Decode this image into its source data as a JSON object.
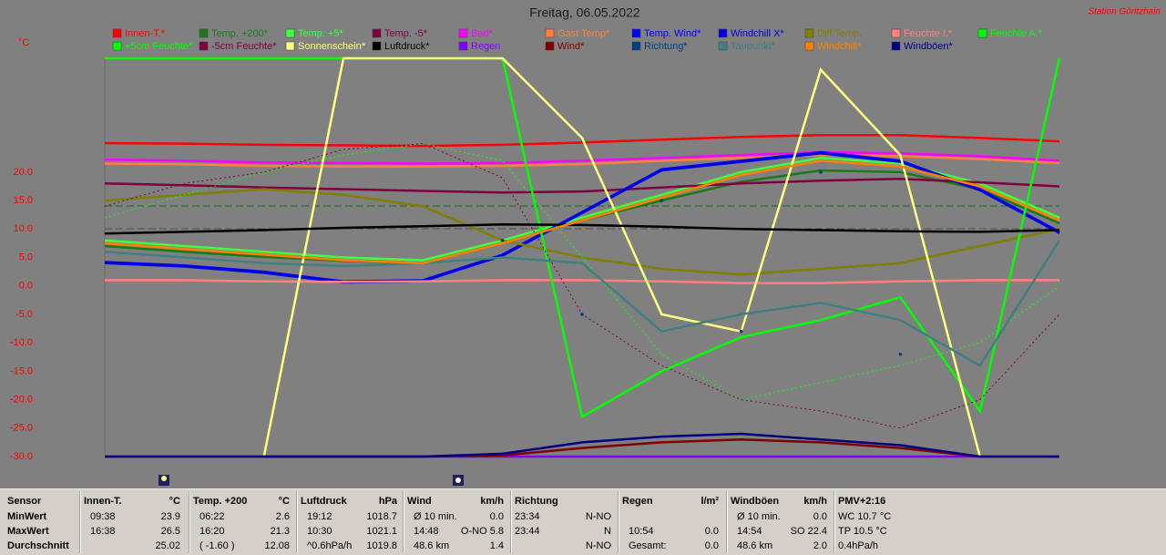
{
  "chart_data": {
    "type": "line",
    "title": "Freitag, 06.05.2022",
    "station": "Station Göritzhain",
    "y_label": "°C",
    "categories": [
      null,
      null,
      null,
      null,
      null,
      null,
      null,
      null,
      null,
      null,
      null,
      null,
      null
    ],
    "ylim": [
      -30,
      40
    ],
    "yticks": [
      {
        "value": 20,
        "label": "20.0"
      },
      {
        "value": 15,
        "label": "15.0"
      },
      {
        "value": 10,
        "label": "10.0"
      },
      {
        "value": 5,
        "label": "5.0"
      },
      {
        "value": 0,
        "label": "0.0"
      },
      {
        "value": -5,
        "label": "-5.0"
      },
      {
        "value": -10,
        "label": "-10.0"
      },
      {
        "value": -15,
        "label": "-15.0"
      },
      {
        "value": -20,
        "label": "-20.0"
      },
      {
        "value": -25,
        "label": "-25.0"
      },
      {
        "value": -30,
        "label": "-30.0"
      }
    ],
    "grid": false,
    "series": [
      {
        "name": "Innen-T.*",
        "color": "#ff0000",
        "values": [
          25.1,
          25,
          24.8,
          24.7,
          24.6,
          24.8,
          25.2,
          25.7,
          26.2,
          26.5,
          26.5,
          26,
          25.4
        ]
      },
      {
        "name": "Temp. +200*",
        "color": "#1a7a1a",
        "values": [
          7,
          6,
          5.1,
          4.4,
          4,
          7.5,
          11.5,
          15,
          18.3,
          20.3,
          20,
          17,
          11
        ]
      },
      {
        "name": "Temp. +5*",
        "color": "#40ff40",
        "values": [
          8,
          7,
          6,
          5,
          4.5,
          8,
          12,
          16,
          20,
          22.5,
          21.5,
          18,
          12
        ]
      },
      {
        "name": "Temp. -5*",
        "color": "#800040",
        "values": [
          18,
          17.7,
          17.3,
          17,
          16.7,
          16.4,
          16.6,
          17.3,
          18,
          18.5,
          18.8,
          18.2,
          17.5
        ]
      },
      {
        "name": "Bad*",
        "color": "#ff00ff",
        "values": [
          22.2,
          22,
          21.7,
          21.6,
          21.5,
          21.6,
          22,
          22.5,
          23,
          23.5,
          23.3,
          22.8,
          22
        ]
      },
      {
        "name": "Gast Temp*",
        "color": "#ff8040",
        "values": [
          21.5,
          21.4,
          21.1,
          21,
          21,
          21.1,
          21.4,
          22,
          22.5,
          23,
          22.8,
          22.3,
          21.6
        ]
      },
      {
        "name": "Temp. Wind*",
        "color": "#0000ff",
        "values": [
          4.2,
          3.6,
          2.5,
          0.8,
          1,
          5.5,
          13,
          20.5,
          22,
          23.5,
          22,
          17,
          9.5
        ]
      },
      {
        "name": "Windchill X*",
        "color": "#0000e0",
        "values": [
          4,
          3.4,
          2.3,
          0.6,
          0.8,
          5.3,
          12.8,
          20.3,
          21.8,
          23.3,
          21.8,
          16.8,
          9.3
        ]
      },
      {
        "name": "Diff Temp.",
        "color": "#808000",
        "values": [
          15,
          16,
          17,
          16,
          14,
          8,
          5,
          3,
          2,
          3,
          4,
          7,
          10
        ]
      },
      {
        "name": "Feuchte I.*",
        "color": "#ff8080",
        "values": [
          1,
          1,
          0.8,
          0.7,
          0.8,
          1,
          1,
          0.8,
          0.5,
          0.5,
          0.8,
          1,
          1
        ]
      },
      {
        "name": "Feuchte A.*",
        "color": "#00ff00",
        "values": [
          40,
          40,
          40,
          40,
          40,
          40,
          -23,
          -15,
          -9,
          -6,
          -2,
          -22,
          40
        ]
      },
      {
        "name": "+5cm Feuchte*",
        "color": "#00ff00",
        "style": "dotted",
        "values": [
          12,
          16,
          20,
          23,
          25,
          22,
          5,
          -12,
          -20,
          -17,
          -14,
          -10,
          0
        ]
      },
      {
        "name": "-5cm Feuchte*",
        "color": "#800040",
        "style": "dotted",
        "values": [
          14,
          18,
          20,
          24,
          25,
          19,
          -5,
          -14,
          -20,
          -22,
          -25,
          -20,
          -5
        ]
      },
      {
        "name": "Sonnenschein*",
        "color": "#ffff80",
        "values": [
          -30,
          -30,
          -30,
          40,
          40,
          40,
          26,
          -5,
          -8,
          38,
          23,
          -30,
          -30
        ]
      },
      {
        "name": "Luftdruck*",
        "color": "#000000",
        "values": [
          9.2,
          9.5,
          9.8,
          10.2,
          10.5,
          10.8,
          10.7,
          10.4,
          10,
          9.8,
          9.6,
          9.5,
          9.8
        ]
      },
      {
        "name": "Regen",
        "color": "#8000ff",
        "values": [
          -30,
          -30,
          -30,
          -30,
          -30,
          -30,
          -30,
          -30,
          -30,
          -30,
          -30,
          -30,
          -30
        ]
      },
      {
        "name": "Wind*",
        "color": "#800000",
        "values": [
          -30,
          -30,
          -30,
          -30,
          -30,
          -29.8,
          -28.5,
          -27.5,
          -27,
          -27.5,
          -28.5,
          -30,
          -30
        ]
      },
      {
        "name": "Richtung*",
        "color": "#004080",
        "style": "dots",
        "values": [
          null,
          null,
          null,
          null,
          null,
          8,
          -5,
          15,
          -8,
          20,
          -12,
          null,
          null
        ]
      },
      {
        "name": "Taupunkt*",
        "color": "#408080",
        "values": [
          6,
          5,
          4,
          3.5,
          4,
          5,
          4,
          -8,
          -5,
          -3,
          -6,
          -14,
          8
        ]
      },
      {
        "name": "Windchill*",
        "color": "#ff8000",
        "values": [
          7.5,
          6.5,
          5.5,
          4.5,
          4,
          7.5,
          11.5,
          15.5,
          19.5,
          22,
          21,
          17.5,
          11.5
        ]
      },
      {
        "name": "Windböen*",
        "color": "#000080",
        "values": [
          -30,
          -30,
          -30,
          -30,
          -30,
          -29.5,
          -27.5,
          -26.5,
          -26,
          -27,
          -28,
          -30,
          -30
        ]
      }
    ]
  },
  "table": {
    "row_header": "Sensor",
    "row_labels": [
      "MinWert",
      "MaxWert",
      "Durchschnitt"
    ],
    "groups": [
      {
        "name": "Innen-T.",
        "unit": "°C",
        "rows": [
          [
            "09:38",
            "23.9"
          ],
          [
            "16:38",
            "26.5"
          ],
          [
            null,
            "25.02"
          ]
        ]
      },
      {
        "name": "Temp. +200",
        "unit": "°C",
        "rows": [
          [
            "06:22",
            "2.6"
          ],
          [
            "16:20",
            "21.3"
          ],
          [
            "( -1.60 )",
            "12.08"
          ]
        ]
      },
      {
        "name": "Luftdruck",
        "unit": "hPa",
        "rows": [
          [
            "19:12",
            "1018.7"
          ],
          [
            "10:30",
            "1021.1"
          ],
          [
            "^0.6hPa/h",
            "1019.8"
          ]
        ]
      },
      {
        "name": "Wind",
        "unit": "km/h",
        "rows": [
          [
            "Ø 10 min.",
            "0.0"
          ],
          [
            "14:48",
            "O-NO 5.8"
          ],
          [
            "48.6 km",
            "1.4"
          ]
        ]
      },
      {
        "name": "Richtung",
        "unit": null,
        "rows": [
          [
            "23:34",
            "N-NO"
          ],
          [
            "23:44",
            "N"
          ],
          [
            null,
            "N-NO"
          ]
        ]
      },
      {
        "name": "Regen",
        "unit": "l/m²",
        "rows": [
          [
            null,
            null
          ],
          [
            "10:54",
            "0.0"
          ],
          [
            "Gesamt:",
            "0.0"
          ]
        ]
      },
      {
        "name": "Windböen",
        "unit": "km/h",
        "rows": [
          [
            "Ø 10 min.",
            "0.0"
          ],
          [
            "14:54",
            "SO 22.4"
          ],
          [
            "48.6 km",
            "2.0"
          ]
        ]
      },
      {
        "name": "PMV+2:16",
        "unit": null,
        "rows": [
          [
            "WC 10.7 °C",
            null
          ],
          [
            "TP 10.5 °C",
            null
          ],
          [
            "0.4hPa/h",
            null
          ]
        ]
      }
    ]
  }
}
